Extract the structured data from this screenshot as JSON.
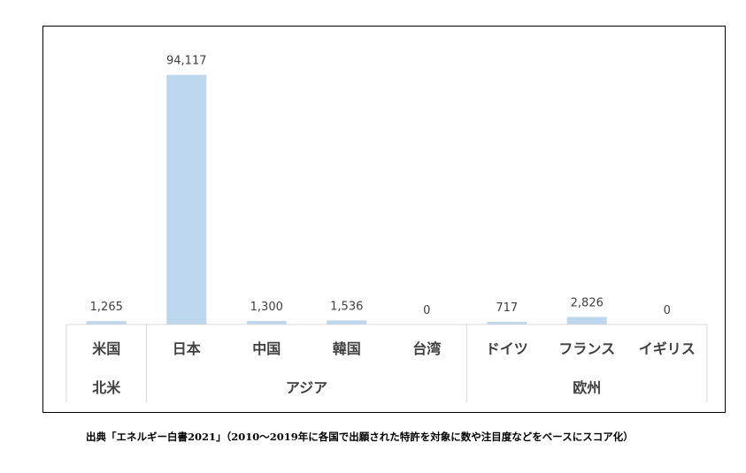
{
  "chart_data": {
    "type": "bar",
    "title": "",
    "xlabel": "",
    "ylabel": "",
    "ylim": [
      0,
      100000
    ],
    "grid": false,
    "legend": "none",
    "categories": [
      "米国",
      "日本",
      "中国",
      "韓国",
      "台湾",
      "ドイツ",
      "フランス",
      "イギリス"
    ],
    "values": [
      1265,
      94117,
      1300,
      1536,
      0,
      717,
      2826,
      0
    ],
    "value_labels": [
      "1,265",
      "94,117",
      "1,300",
      "1,536",
      "0",
      "717",
      "2,826",
      "0"
    ],
    "groups": [
      {
        "label": "北米",
        "members": [
          "米国"
        ]
      },
      {
        "label": "アジア",
        "members": [
          "日本",
          "中国",
          "韓国",
          "台湾"
        ]
      },
      {
        "label": "欧州",
        "members": [
          "ドイツ",
          "フランス",
          "イギリス"
        ]
      }
    ],
    "bar_color": "#bdd7ee"
  },
  "source_note": "出典「エネルギー白書2021」（2010～2019年に各国で出願された特許を対象に数や注目度などをベースにスコア化）"
}
